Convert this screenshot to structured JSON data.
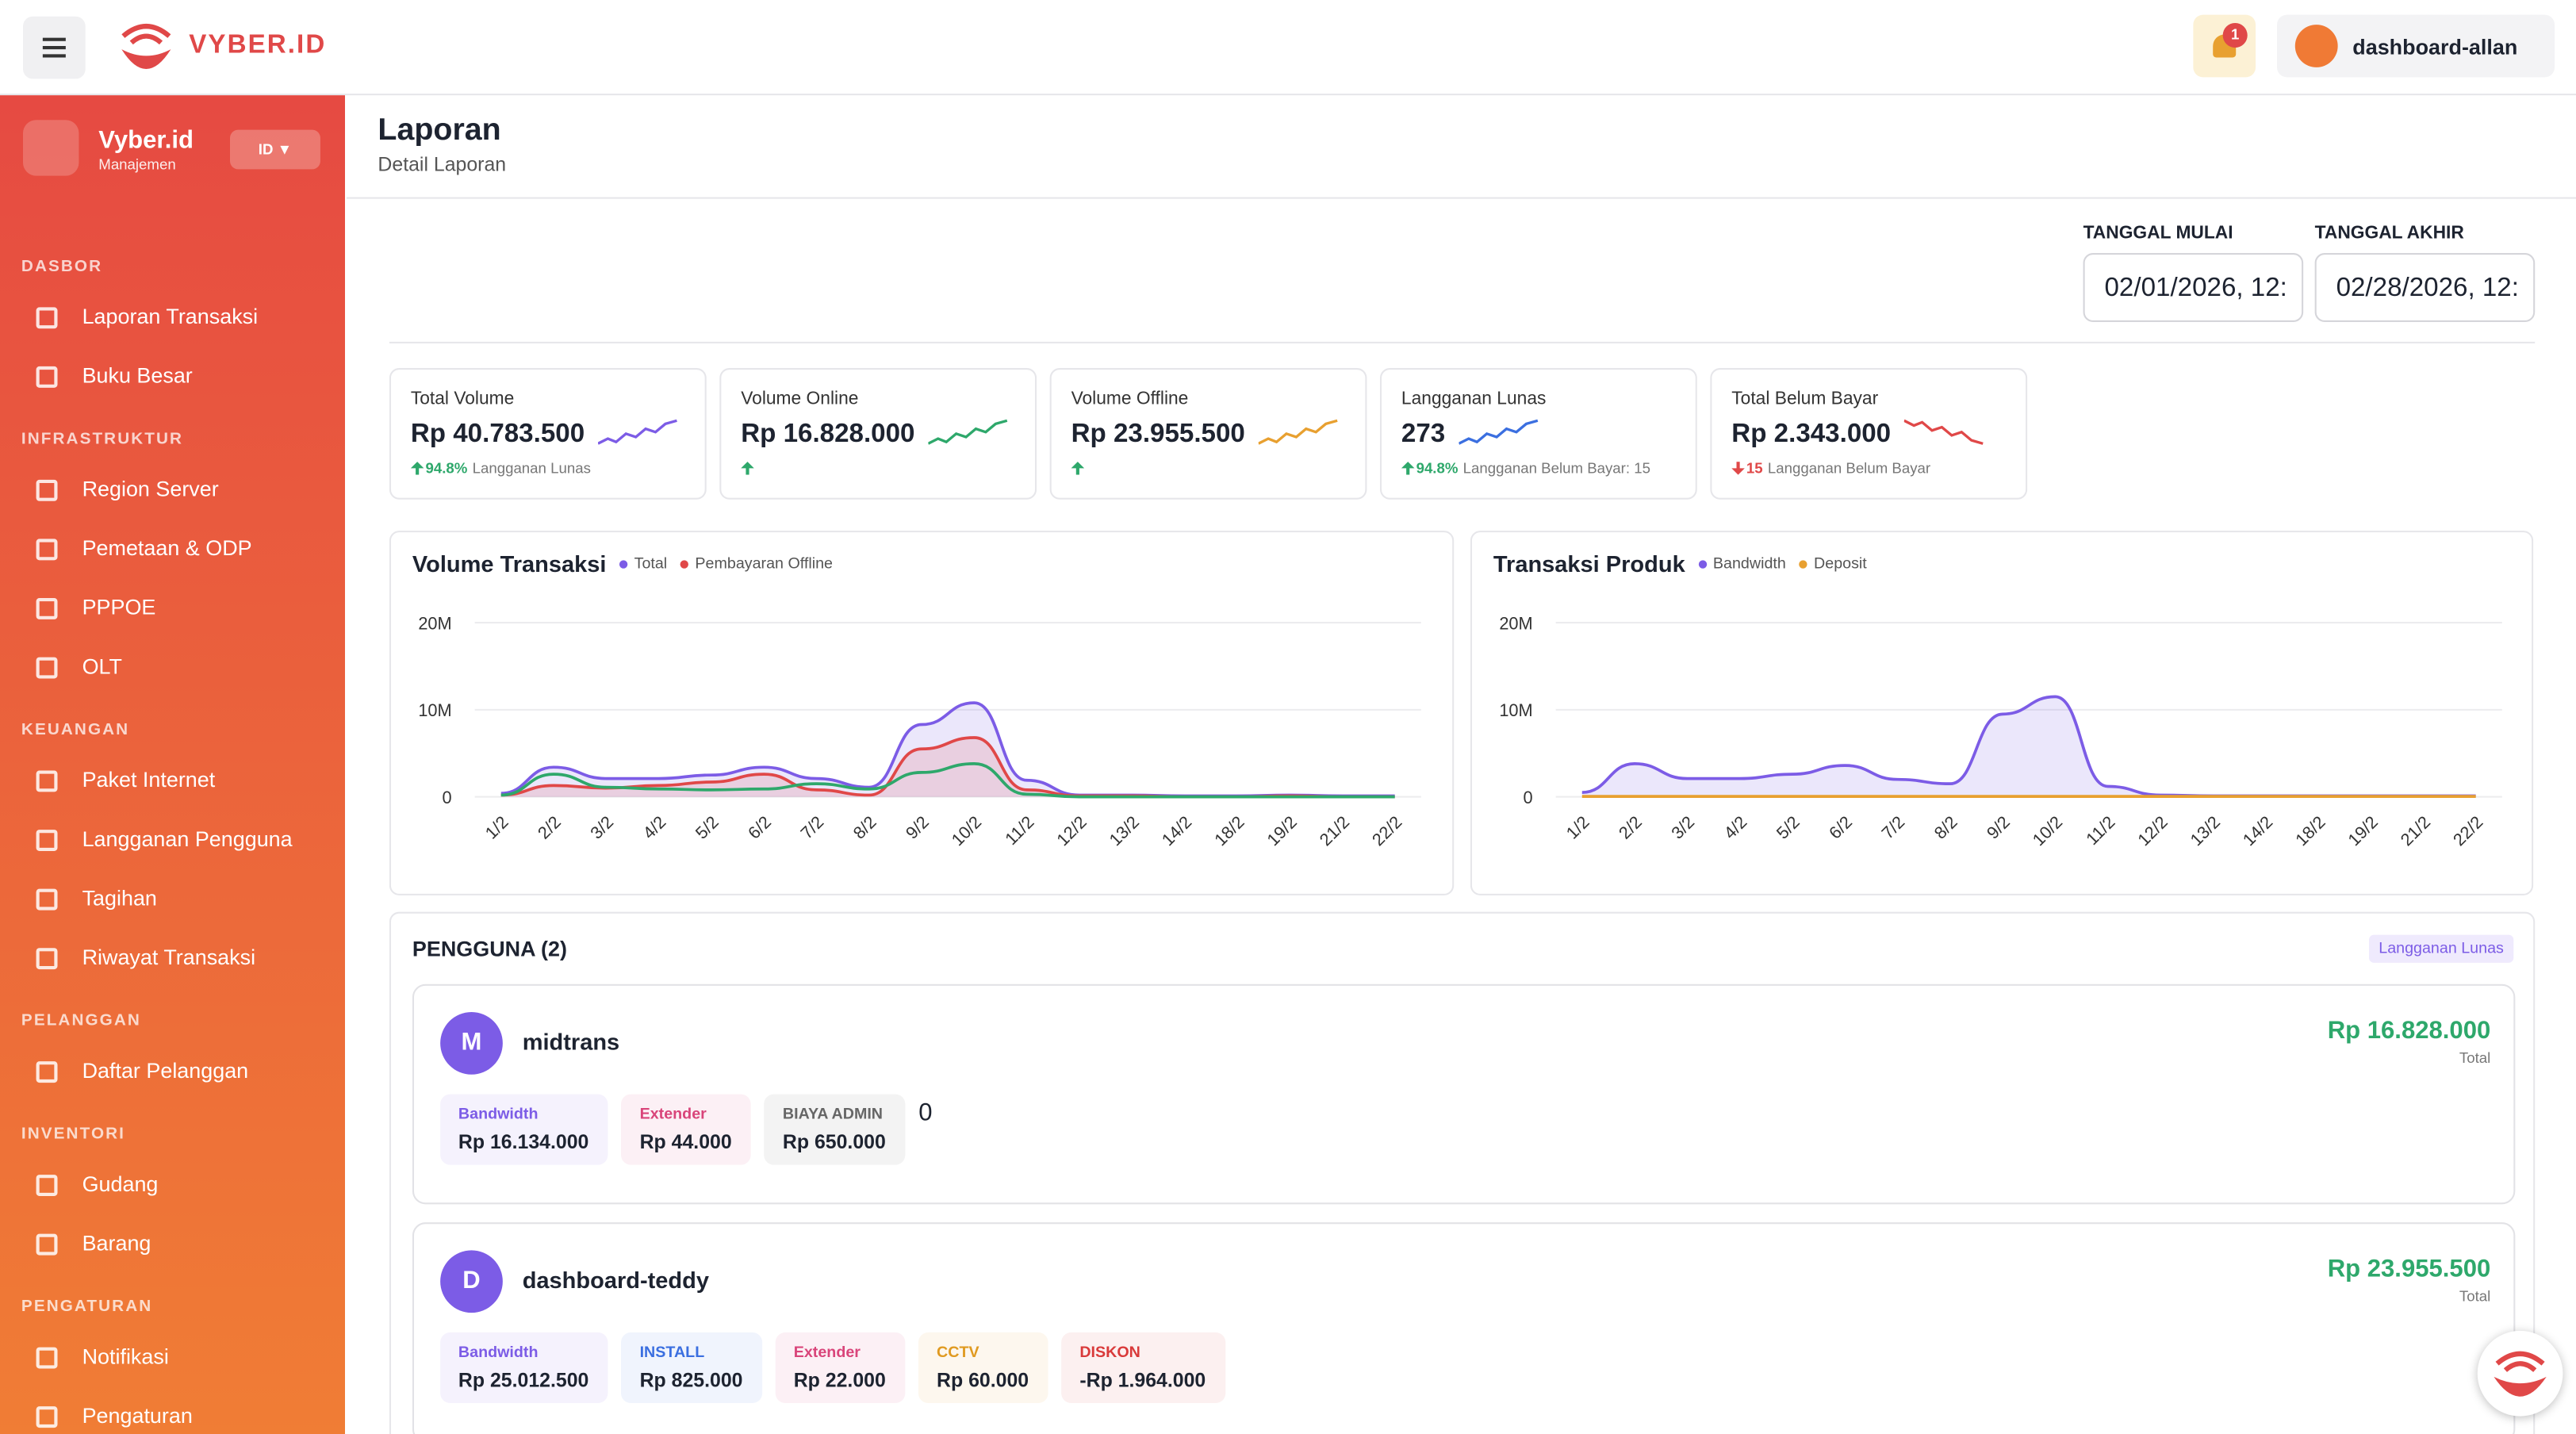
{
  "header": {
    "brand": "VYBER.ID",
    "notifications": "1",
    "user": "dashboard-allan"
  },
  "sidebar": {
    "title": "Vyber.id",
    "subtitle": "Manajemen",
    "language": "ID ▼",
    "sections": [
      {
        "title": "DASBOR",
        "items": [
          "Laporan Transaksi",
          "Buku Besar"
        ]
      },
      {
        "title": "INFRASTRUKTUR",
        "items": [
          "Region Server",
          "Pemetaan & ODP",
          "PPPOE",
          "OLT"
        ]
      },
      {
        "title": "KEUANGAN",
        "items": [
          "Paket Internet",
          "Langganan Pengguna",
          "Tagihan",
          "Riwayat Transaksi"
        ]
      },
      {
        "title": "PELANGGAN",
        "items": [
          "Daftar Pelanggan"
        ]
      },
      {
        "title": "INVENTORI",
        "items": [
          "Gudang",
          "Barang"
        ]
      },
      {
        "title": "PENGATURAN",
        "items": [
          "Notifikasi",
          "Pengaturan"
        ]
      }
    ]
  },
  "page": {
    "title": "Laporan",
    "subtitle": "Detail Laporan"
  },
  "filters": [
    {
      "label": "TANGGAL MULAI",
      "value": "02/01/2026, 12:"
    },
    {
      "label": "TANGGAL AKHIR",
      "value": "02/28/2026, 12:"
    }
  ],
  "stats": [
    {
      "label": "Total Volume",
      "value": "Rp 40.783.500",
      "change": "94.8%",
      "note": "Langganan Lunas",
      "trend": "up",
      "color": "#7c5ce6"
    },
    {
      "label": "Volume Online",
      "value": "Rp 16.828.000",
      "trend": "up",
      "color": "#2ea86b"
    },
    {
      "label": "Volume Offline",
      "value": "Rp 23.955.500",
      "trend": "up",
      "color": "#e8a030"
    },
    {
      "label": "Langganan Lunas",
      "value": "273",
      "change": "94.8%",
      "note": "Langganan Belum Bayar: 15",
      "trend": "up",
      "color": "#3b6fe0"
    },
    {
      "label": "Total Belum Bayar",
      "value": "Rp 2.343.000",
      "change": "15",
      "note": "Langganan Belum Bayar",
      "trend": "down",
      "color": "#e04848"
    }
  ],
  "chart_data": [
    {
      "type": "area",
      "title": "Volume Transaksi",
      "categories": [
        "1/2",
        "2/2",
        "3/2",
        "4/2",
        "5/2",
        "6/2",
        "7/2",
        "8/2",
        "9/2",
        "10/2",
        "11/2",
        "12/2",
        "13/2",
        "14/2",
        "18/2",
        "19/2",
        "21/2",
        "22/2"
      ],
      "series": [
        {
          "name": "Total",
          "color": "#7c5ce6",
          "fill": true,
          "values": [
            400000,
            3400000,
            2100000,
            2100000,
            2500000,
            3400000,
            2100000,
            1100000,
            8300000,
            10800000,
            1900000,
            200000,
            200000,
            100000,
            100000,
            200000,
            100000,
            100000
          ]
        },
        {
          "name": "Pembayaran Offline",
          "color": "#e04848",
          "fill": true,
          "values": [
            200000,
            1300000,
            1000000,
            1300000,
            1700000,
            2600000,
            800000,
            200000,
            5500000,
            6800000,
            800000,
            100000,
            100000,
            0,
            0,
            100000,
            0,
            0
          ]
        },
        {
          "color": "#2ea86b",
          "values": [
            200000,
            2600000,
            1100000,
            900000,
            800000,
            900000,
            1500000,
            900000,
            2800000,
            3800000,
            300000,
            0,
            0,
            0,
            0,
            0,
            0,
            0
          ]
        }
      ],
      "ylim": [
        0,
        20000000
      ],
      "yticks": [
        0,
        {
          "value": 10000000,
          "label": "10M"
        },
        {
          "value": 20000000,
          "label": "20M"
        }
      ],
      "grid": true
    },
    {
      "type": "area",
      "title": "Transaksi Produk",
      "categories": [
        "1/2",
        "2/2",
        "3/2",
        "4/2",
        "5/2",
        "6/2",
        "7/2",
        "8/2",
        "9/2",
        "10/2",
        "11/2",
        "12/2",
        "13/2",
        "14/2",
        "18/2",
        "19/2",
        "21/2",
        "22/2"
      ],
      "series": [
        {
          "name": "Bandwidth",
          "color": "#7c5ce6",
          "fill": true,
          "values": [
            500000,
            3800000,
            2100000,
            2100000,
            2600000,
            3600000,
            2000000,
            1500000,
            9500000,
            11500000,
            1200000,
            200000,
            100000,
            100000,
            100000,
            100000,
            100000,
            100000
          ]
        },
        {
          "name": "Deposit",
          "color": "#e8a030",
          "values": [
            50000,
            50000,
            50000,
            50000,
            50000,
            50000,
            50000,
            50000,
            50000,
            50000,
            50000,
            50000,
            50000,
            50000,
            50000,
            50000,
            50000,
            50000
          ]
        }
      ],
      "ylim": [
        0,
        20000000
      ],
      "yticks": [
        0,
        {
          "value": 10000000,
          "label": "10M"
        },
        {
          "value": 20000000,
          "label": "20M"
        }
      ],
      "grid": true
    }
  ],
  "users": {
    "title": "PENGGUNA (2)",
    "badge": "Langganan Lunas",
    "list": [
      {
        "initial": "M",
        "name": "midtrans",
        "total": "Rp 16.828.000",
        "total_label": "Total",
        "extra": "0",
        "items": [
          {
            "label": "Bandwidth",
            "value": "Rp 16.134.000",
            "color": "#7c5ce6"
          },
          {
            "label": "Extender",
            "value": "Rp 44.000",
            "color": "#d9457a"
          },
          {
            "label": "BIAYA ADMIN",
            "value": "Rp 650.000",
            "color": "#666666"
          }
        ]
      },
      {
        "initial": "D",
        "name": "dashboard-teddy",
        "total": "Rp 23.955.500",
        "total_label": "Total",
        "items": [
          {
            "label": "Bandwidth",
            "value": "Rp 25.012.500",
            "color": "#7c5ce6"
          },
          {
            "label": "INSTALL",
            "value": "Rp 825.000",
            "color": "#3b6fe0"
          },
          {
            "label": "Extender",
            "value": "Rp 22.000",
            "color": "#d9457a"
          },
          {
            "label": "CCTV",
            "value": "Rp 60.000",
            "color": "#e09a20"
          },
          {
            "label": "DISKON",
            "value": "-Rp 1.964.000",
            "color": "#d93a3a"
          }
        ]
      }
    ]
  }
}
